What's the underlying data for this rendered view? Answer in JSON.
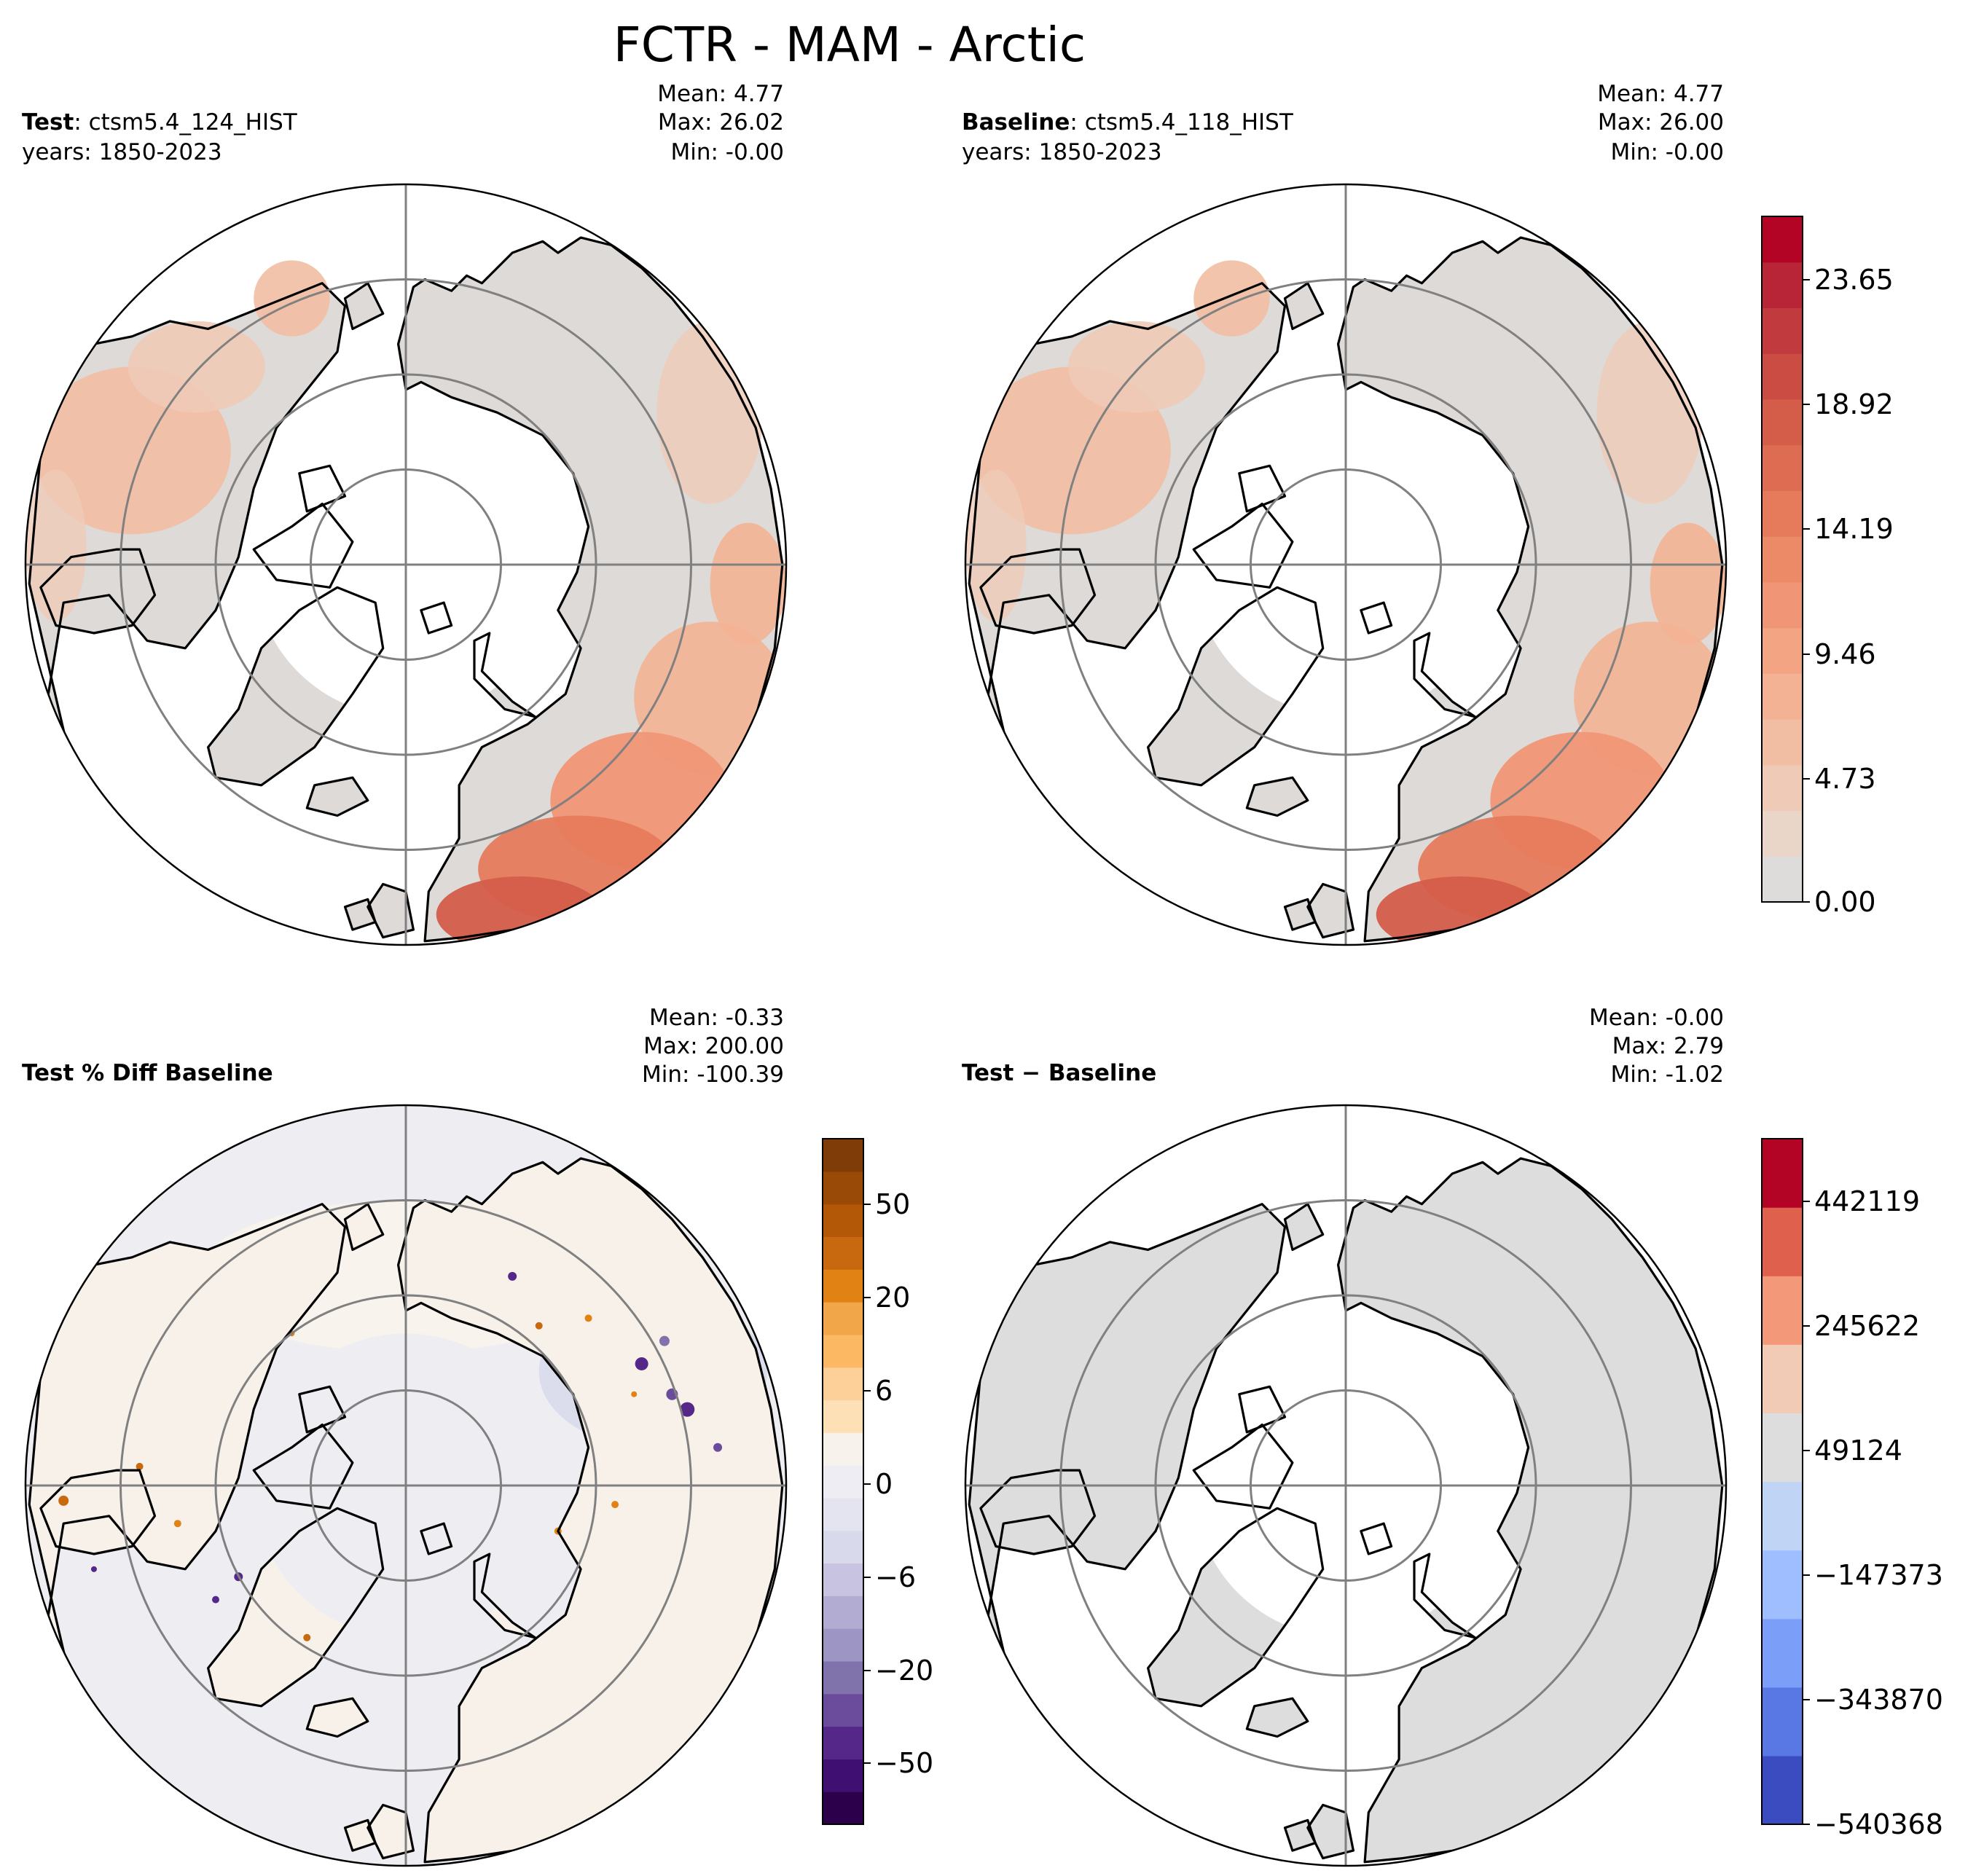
{
  "figure": {
    "title": "FCTR - MAM - Arctic"
  },
  "panels": [
    {
      "id": "test",
      "label_bold": "Test",
      "label_sep": ": ",
      "label_text": "ctsm5.4_124_HIST",
      "years": "years: 1850-2023",
      "mean": "Mean:  4.77",
      "max": "Max: 26.02",
      "min": "Min: -0.00"
    },
    {
      "id": "baseline",
      "label_bold": "Baseline",
      "label_sep": ": ",
      "label_text": "ctsm5.4_118_HIST",
      "years": "years: 1850-2023",
      "mean": "Mean:  4.77",
      "max": "Max: 26.00",
      "min": "Min: -0.00"
    },
    {
      "id": "pctdiff",
      "label_bold": "Test % Diff Baseline",
      "mean": "Mean: -0.33",
      "max": "Max: 200.00",
      "min": "Min: -100.39"
    },
    {
      "id": "diff",
      "label_bold": "Test − Baseline",
      "mean": "Mean: -0.00",
      "max": "Max:  2.79",
      "min": "Min: -1.02"
    }
  ],
  "colorbars": {
    "main": {
      "ticks": [
        "0.00",
        "4.73",
        "9.46",
        "14.19",
        "18.92",
        "23.65"
      ],
      "colors": [
        "#dddcdb",
        "#ead5c9",
        "#efcab7",
        "#f2bea3",
        "#f3b293",
        "#f3a482",
        "#f09676",
        "#ec8a68",
        "#e67b5c",
        "#de6c52",
        "#d45d4a",
        "#cb4c43",
        "#c13a3d",
        "#b82536",
        "#b40426"
      ]
    },
    "pctdiff": {
      "ticks": [
        "−50",
        "−20",
        "−6",
        "0",
        "6",
        "20",
        "50"
      ],
      "colors": [
        "#2d004b",
        "#3f0f72",
        "#542788",
        "#6b4c9c",
        "#8073ac",
        "#9d95c3",
        "#b2abd2",
        "#c8c3e0",
        "#d8daeb",
        "#e4e3f0",
        "#eeedf3",
        "#f7f2ec",
        "#fee0b6",
        "#fdd09a",
        "#fdb863",
        "#f2a64a",
        "#e08214",
        "#c86910",
        "#b35806",
        "#9a4a07",
        "#7f3b08"
      ]
    },
    "diff": {
      "ticks": [
        "−540368",
        "−343870",
        "−147373",
        "49124",
        "245622",
        "442119"
      ],
      "colors": [
        "#3b4cc0",
        "#5a78e4",
        "#7b9ff9",
        "#9ebeff",
        "#c0d4f5",
        "#dddddd",
        "#f2cbb7",
        "#f4987a",
        "#de604d",
        "#b40426"
      ]
    }
  },
  "map": {
    "projection": "North Polar Stereographic",
    "graticule_latitudes": [
      80,
      70,
      60
    ],
    "land_color": "#dddad7",
    "diff_land_color": "#dddddd",
    "coastline_color": "#000000",
    "grid_color": "#808080"
  }
}
